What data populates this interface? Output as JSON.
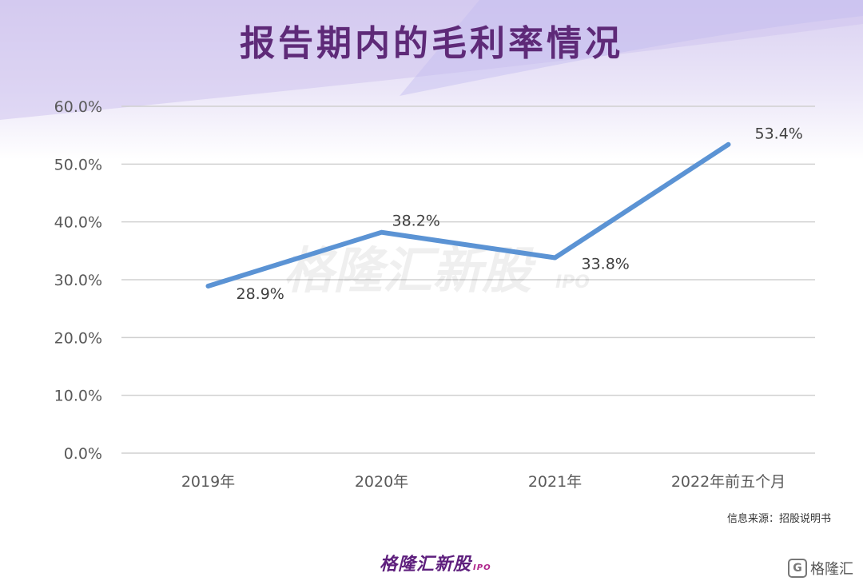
{
  "title": "报告期内的毛利率情况",
  "source": "信息来源：招股说明书",
  "watermark": "格隆汇新股",
  "watermark_suffix": "IPO",
  "footer_logo": "格隆汇新股",
  "footer_logo_suffix": "IPO",
  "corner_brand": "格隆汇",
  "corner_icon": "G",
  "colors": {
    "line": "#5b93d4",
    "title": "#5e2a78",
    "grid": "#d0d0d0",
    "axis_text": "#595959"
  },
  "chart_data": {
    "type": "line",
    "categories": [
      "2019年",
      "2020年",
      "2021年",
      "2022年前五个月"
    ],
    "values": [
      28.9,
      38.2,
      33.8,
      53.4
    ],
    "data_labels": [
      "28.9%",
      "38.2%",
      "33.8%",
      "53.4%"
    ],
    "yticks": [
      0,
      10,
      20,
      30,
      40,
      50,
      60
    ],
    "ytick_labels": [
      "0.0%",
      "10.0%",
      "20.0%",
      "30.0%",
      "40.0%",
      "50.0%",
      "60.0%"
    ],
    "ylim": [
      0,
      60
    ],
    "grid": true,
    "legend": "none"
  }
}
